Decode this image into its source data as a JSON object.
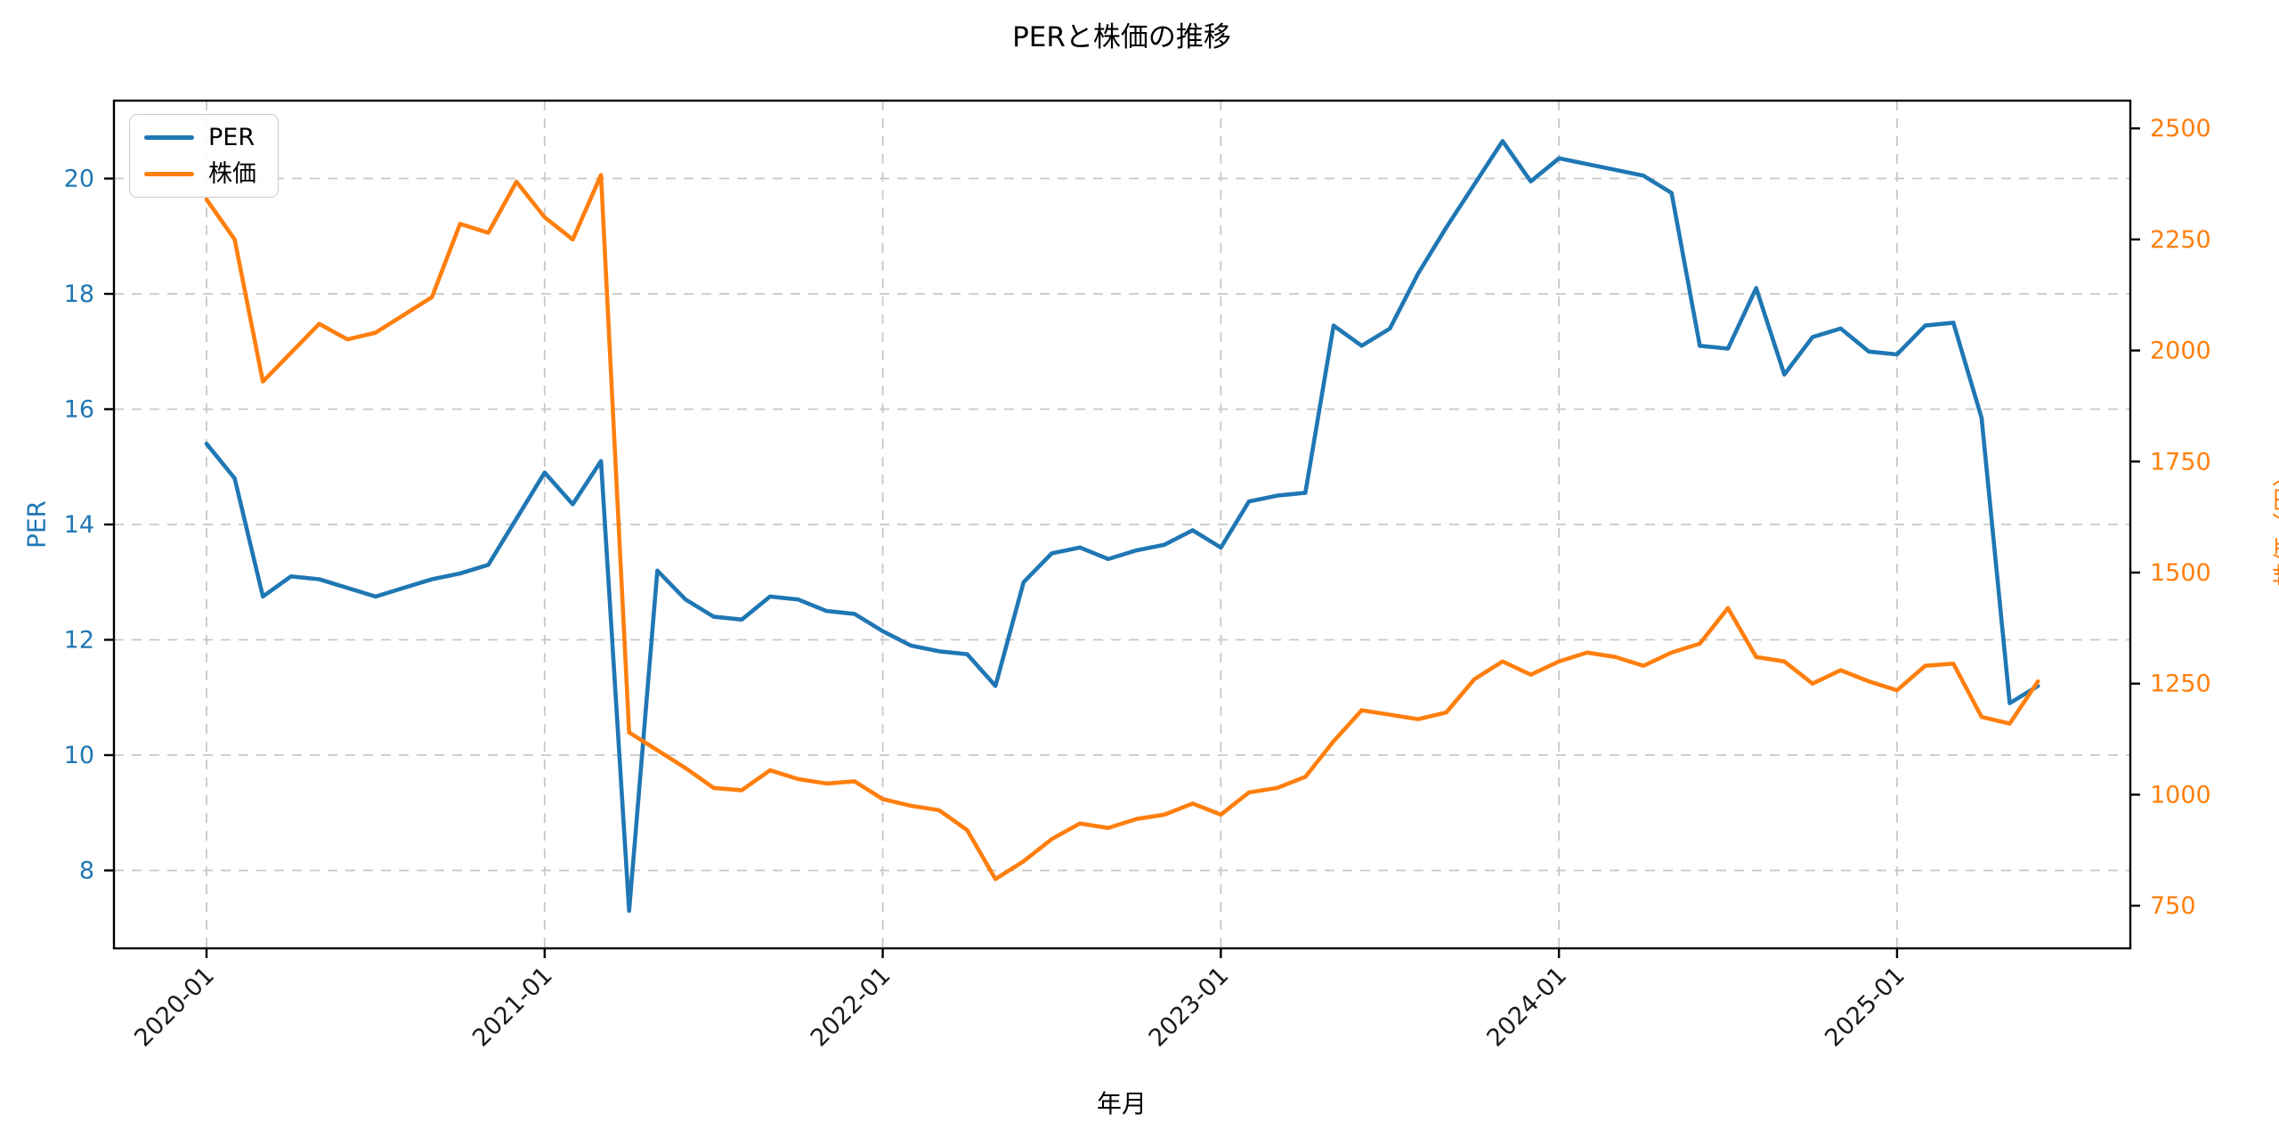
{
  "title": "PERと株価の推移",
  "xlabel": "年月",
  "ylabel_left": "PER",
  "ylabel_right": "株価（円）",
  "legend": {
    "per_label": "PER",
    "price_label": "株価"
  },
  "colors": {
    "per": "#1f77b4",
    "price": "#ff7f0e",
    "grid": "#c8c8c8",
    "spine": "#000000",
    "tick_text": "#1a1a1a"
  },
  "x_tick_labels": [
    "2020-01",
    "2021-01",
    "2022-01",
    "2023-01",
    "2024-01",
    "2025-01"
  ],
  "x_tick_month_index": [
    0,
    12,
    24,
    36,
    48,
    60
  ],
  "y_ticks_left": [
    8,
    10,
    12,
    14,
    16,
    18,
    20
  ],
  "y_ticks_right": [
    750,
    1000,
    1250,
    1500,
    1750,
    2000,
    2250,
    2500
  ],
  "chart_data": {
    "type": "line",
    "title": "PERと株価の推移",
    "xlabel": "年月",
    "ylabel_left": "PER",
    "ylabel_right": "株価（円）",
    "grid": true,
    "legend_position": "upper left",
    "ylim_left": [
      6.64,
      21.35
    ],
    "ylim_right": [
      654,
      2563
    ],
    "x": [
      "2020-01",
      "2020-02",
      "2020-03",
      "2020-04",
      "2020-05",
      "2020-06",
      "2020-07",
      "2020-08",
      "2020-09",
      "2020-10",
      "2020-11",
      "2020-12",
      "2021-01",
      "2021-02",
      "2021-03",
      "2021-04",
      "2021-05",
      "2021-06",
      "2021-07",
      "2021-08",
      "2021-09",
      "2021-10",
      "2021-11",
      "2021-12",
      "2022-01",
      "2022-02",
      "2022-03",
      "2022-04",
      "2022-05",
      "2022-06",
      "2022-07",
      "2022-08",
      "2022-09",
      "2022-10",
      "2022-11",
      "2022-12",
      "2023-01",
      "2023-02",
      "2023-03",
      "2023-04",
      "2023-05",
      "2023-06",
      "2023-07",
      "2023-08",
      "2023-09",
      "2023-10",
      "2023-11",
      "2023-12",
      "2024-01",
      "2024-02",
      "2024-03",
      "2024-04",
      "2024-05",
      "2024-06",
      "2024-07",
      "2024-08",
      "2024-09",
      "2024-10",
      "2024-11",
      "2024-12",
      "2025-01",
      "2025-02",
      "2025-03",
      "2025-04",
      "2025-05",
      "2025-06"
    ],
    "series": [
      {
        "name": "PER",
        "axis": "left",
        "color": "#1f77b4",
        "values": [
          15.4,
          14.8,
          12.75,
          13.1,
          13.05,
          12.9,
          12.75,
          12.9,
          13.05,
          13.15,
          13.3,
          14.1,
          14.9,
          14.35,
          15.1,
          7.3,
          13.2,
          12.7,
          12.4,
          12.35,
          12.75,
          12.7,
          12.5,
          12.45,
          12.15,
          11.9,
          11.8,
          11.75,
          11.2,
          13.0,
          13.5,
          13.6,
          13.4,
          13.55,
          13.65,
          13.9,
          13.6,
          14.4,
          14.5,
          14.55,
          17.45,
          17.1,
          17.4,
          18.35,
          19.15,
          19.9,
          20.65,
          19.95,
          20.35,
          20.25,
          20.15,
          20.05,
          19.75,
          17.1,
          17.05,
          18.1,
          16.6,
          17.25,
          17.4,
          17.0,
          16.95,
          17.45,
          17.5,
          15.85,
          10.9,
          11.2
        ]
      },
      {
        "name": "株価",
        "axis": "right",
        "color": "#ff7f0e",
        "values": [
          2340,
          2250,
          1930,
          1995,
          2060,
          2025,
          2040,
          2080,
          2120,
          2285,
          2265,
          2380,
          2300,
          2250,
          2395,
          1140,
          1100,
          1060,
          1015,
          1010,
          1055,
          1035,
          1025,
          1030,
          990,
          975,
          965,
          920,
          810,
          850,
          900,
          935,
          925,
          945,
          955,
          980,
          955,
          1005,
          1015,
          1040,
          1120,
          1190,
          1180,
          1170,
          1185,
          1260,
          1300,
          1270,
          1300,
          1320,
          1310,
          1290,
          1320,
          1340,
          1420,
          1310,
          1300,
          1250,
          1280,
          1255,
          1235,
          1290,
          1295,
          1175,
          1160,
          1255
        ]
      }
    ]
  }
}
